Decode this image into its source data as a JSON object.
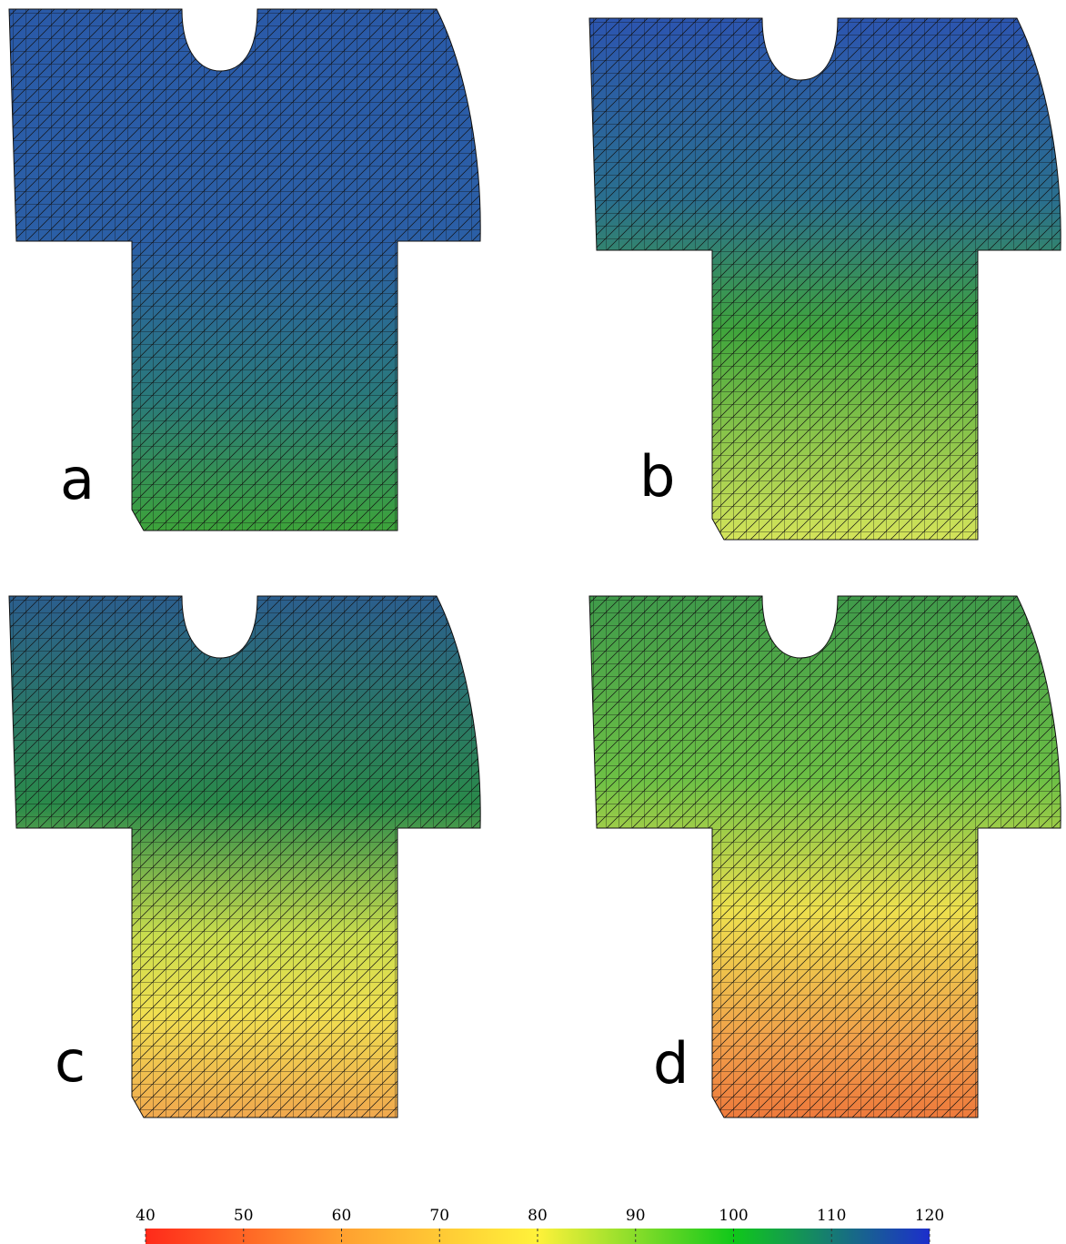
{
  "panels": [
    {
      "label": "a"
    },
    {
      "label": "b"
    },
    {
      "label": "c"
    },
    {
      "label": "d"
    }
  ],
  "colorbar": {
    "lim": [
      40,
      120
    ],
    "ticks": [
      40,
      50,
      60,
      70,
      80,
      90,
      100,
      110,
      120
    ]
  }
}
